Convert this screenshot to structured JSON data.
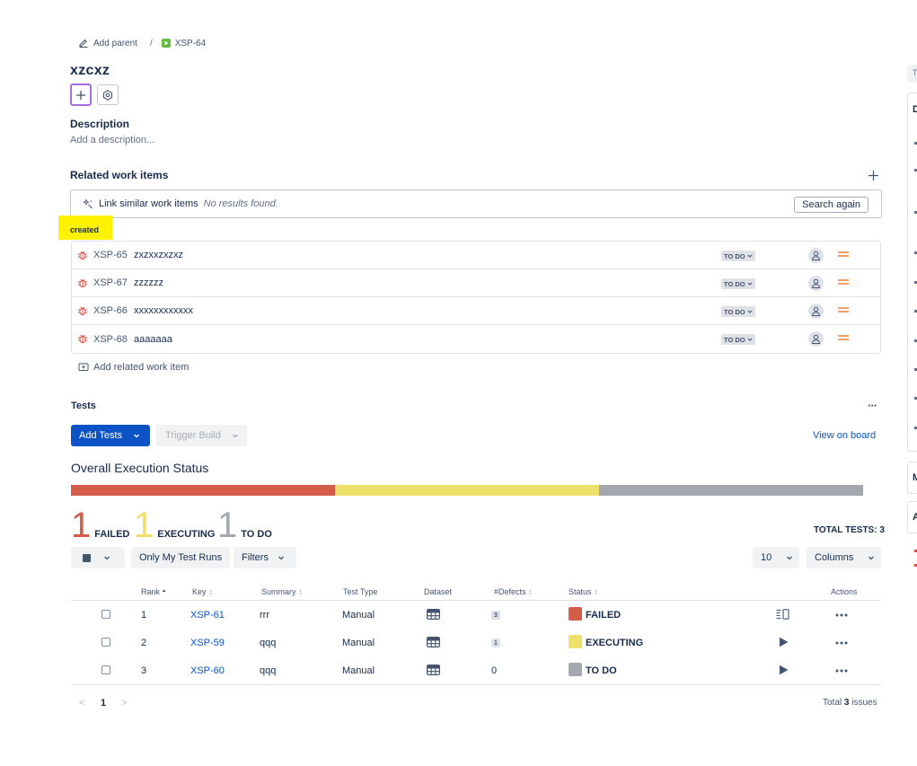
{
  "breadcrumb": {
    "add_parent": "Add parent",
    "separator": "/",
    "parent_key": "XSP-64"
  },
  "issue": {
    "title": "xzcxz"
  },
  "description": {
    "heading": "Description",
    "placeholder": "Add a description..."
  },
  "related": {
    "heading": "Related work items",
    "link_similar_label": "Link similar work items",
    "no_results": "No results found.",
    "search_again": "Search again",
    "created_label": "created",
    "items": [
      {
        "key": "XSP-65",
        "summary": "zxzxxzxzxz",
        "status": "TO DO"
      },
      {
        "key": "XSP-67",
        "summary": "zzzzzz",
        "status": "TO DO"
      },
      {
        "key": "XSP-66",
        "summary": "xxxxxxxxxxxx",
        "status": "TO DO"
      },
      {
        "key": "XSP-68",
        "summary": "aaaaaaa",
        "status": "TO DO"
      }
    ],
    "add_related": "Add related work item"
  },
  "tests": {
    "heading": "Tests",
    "more": "···",
    "add_tests": "Add Tests",
    "trigger_build": "Trigger Build",
    "view_on_board": "View on board",
    "overall_title": "Overall Execution Status",
    "progress": {
      "failed": 1,
      "executing": 1,
      "todo": 1
    },
    "colors": {
      "failed": "#d35c4b",
      "executing": "#eee06b",
      "todo": "#a4a7ad"
    },
    "counts": [
      {
        "count": "1",
        "label": "FAILED"
      },
      {
        "count": "1",
        "label": "EXECUTING"
      },
      {
        "count": "1",
        "label": "TO DO"
      }
    ],
    "total_tests": "TOTAL TESTS: 3",
    "toolbar": {
      "only_my_runs": "Only My Test Runs",
      "filters": "Filters",
      "page_size": "10",
      "columns": "Columns"
    },
    "columns": {
      "rank": "Rank",
      "key": "Key",
      "summary": "Summary",
      "test_type": "Test Type",
      "dataset": "Dataset",
      "defects": "#Defects",
      "status": "Status",
      "actions": "Actions"
    },
    "rows": [
      {
        "rank": "1",
        "key": "XSP-61",
        "summary": "rrr",
        "type": "Manual",
        "defects": "3",
        "status": "FAILED",
        "status_color": "#d35c4b",
        "action": "list-icon"
      },
      {
        "rank": "2",
        "key": "XSP-59",
        "summary": "qqq",
        "type": "Manual",
        "defects": "1",
        "status": "EXECUTING",
        "status_color": "#eee06b",
        "action": "play-icon"
      },
      {
        "rank": "3",
        "key": "XSP-60",
        "summary": "qqq",
        "type": "Manual",
        "defects": "0",
        "status": "TO DO",
        "status_color": "#a4a7ad",
        "action": "play-icon"
      }
    ],
    "pagination": {
      "prev": "<",
      "page": "1",
      "next": ">",
      "total_prefix": "Total",
      "total_count": "3",
      "total_suffix": "issues"
    }
  },
  "right_rail": {
    "letters": [
      "T",
      "D",
      "M",
      "A"
    ]
  }
}
